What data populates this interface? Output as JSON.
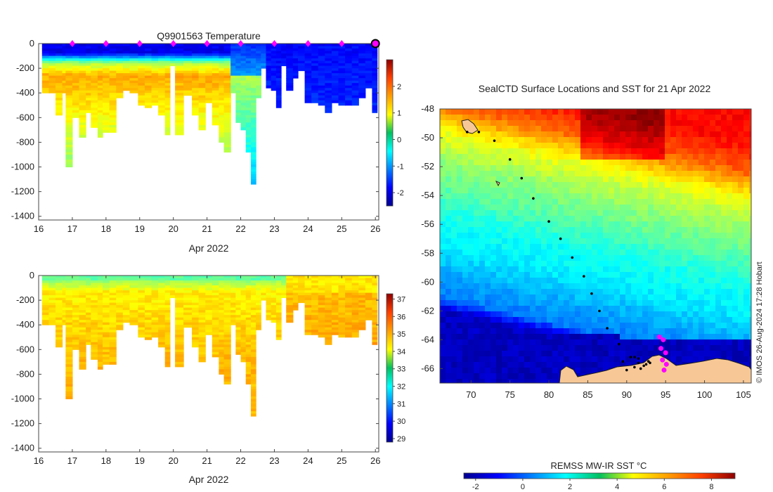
{
  "chart_data": [
    {
      "type": "heatmap",
      "id": "temperature-section",
      "title": "Q9901563  Temperature",
      "xlabel": "Apr 2022",
      "ylabel": "",
      "x_ticks": [
        "16",
        "17",
        "18",
        "19",
        "20",
        "21",
        "22",
        "23",
        "24",
        "25",
        "26"
      ],
      "xlim": [
        16,
        26.1
      ],
      "y_ticks": [
        "0",
        "-200",
        "-400",
        "-600",
        "-800",
        "-1000",
        "-1200",
        "-1400"
      ],
      "ylim": [
        -1430,
        0
      ],
      "colorbar": {
        "min": -2.5,
        "max": 3,
        "ticks": [
          "-2",
          "-1",
          "0",
          "1",
          "2"
        ],
        "colormap": "jet"
      },
      "surface_markers_day": [
        17,
        18,
        19,
        20,
        21,
        22,
        23,
        24,
        25
      ],
      "last_profile_day": 26,
      "profiles": [
        {
          "t": 16.1,
          "d": 400
        },
        {
          "t": 16.3,
          "d": 400
        },
        {
          "t": 16.5,
          "d": 580
        },
        {
          "t": 16.7,
          "d": 400
        },
        {
          "t": 16.8,
          "d": 1000
        },
        {
          "t": 17.0,
          "d": 600
        },
        {
          "t": 17.2,
          "d": 760
        },
        {
          "t": 17.4,
          "d": 550
        },
        {
          "t": 17.55,
          "d": 670
        },
        {
          "t": 17.75,
          "d": 750
        },
        {
          "t": 17.9,
          "d": 720
        },
        {
          "t": 18.1,
          "d": 720
        },
        {
          "t": 18.3,
          "d": 430
        },
        {
          "t": 18.5,
          "d": 380
        },
        {
          "t": 18.7,
          "d": 400
        },
        {
          "t": 18.95,
          "d": 500
        },
        {
          "t": 19.15,
          "d": 520
        },
        {
          "t": 19.35,
          "d": 490
        },
        {
          "t": 19.55,
          "d": 570
        },
        {
          "t": 19.75,
          "d": 740
        },
        {
          "t": 19.9,
          "d": 180
        },
        {
          "t": 20.05,
          "d": 740
        },
        {
          "t": 20.3,
          "d": 420
        },
        {
          "t": 20.55,
          "d": 580
        },
        {
          "t": 20.75,
          "d": 690
        },
        {
          "t": 20.95,
          "d": 480
        },
        {
          "t": 21.15,
          "d": 660
        },
        {
          "t": 21.35,
          "d": 800
        },
        {
          "t": 21.5,
          "d": 870
        },
        {
          "t": 21.7,
          "d": 390
        },
        {
          "t": 21.85,
          "d": 640
        },
        {
          "t": 22.0,
          "d": 700
        },
        {
          "t": 22.15,
          "d": 880
        },
        {
          "t": 22.3,
          "d": 1140
        },
        {
          "t": 22.45,
          "d": 440
        },
        {
          "t": 22.6,
          "d": 200
        },
        {
          "t": 22.75,
          "d": 360
        },
        {
          "t": 22.9,
          "d": 380
        },
        {
          "t": 23.05,
          "d": 510
        },
        {
          "t": 23.2,
          "d": 180
        },
        {
          "t": 23.35,
          "d": 370
        },
        {
          "t": 23.55,
          "d": 280
        },
        {
          "t": 23.7,
          "d": 220
        },
        {
          "t": 23.9,
          "d": 470
        },
        {
          "t": 24.1,
          "d": 470
        },
        {
          "t": 24.3,
          "d": 500
        },
        {
          "t": 24.5,
          "d": 560
        },
        {
          "t": 24.7,
          "d": 480
        },
        {
          "t": 24.9,
          "d": 490
        },
        {
          "t": 25.1,
          "d": 500
        },
        {
          "t": 25.3,
          "d": 500
        },
        {
          "t": 25.5,
          "d": 440
        },
        {
          "t": 25.7,
          "d": 360
        },
        {
          "t": 25.9,
          "d": 550
        }
      ]
    },
    {
      "type": "heatmap",
      "id": "salinity-section",
      "title": "",
      "xlabel": "Apr 2022",
      "ylabel": "",
      "x_ticks": [
        "16",
        "17",
        "18",
        "19",
        "20",
        "21",
        "22",
        "23",
        "24",
        "25",
        "26"
      ],
      "xlim": [
        16,
        26.1
      ],
      "y_ticks": [
        "0",
        "-200",
        "-400",
        "-600",
        "-800",
        "-1000",
        "-1200",
        "-1400"
      ],
      "ylim": [
        -1430,
        0
      ],
      "colorbar": {
        "min": 28.8,
        "max": 37.3,
        "ticks": [
          "29",
          "30",
          "31",
          "32",
          "33",
          "34",
          "35",
          "36",
          "37"
        ],
        "colormap": "jet"
      }
    },
    {
      "type": "heatmap",
      "id": "sst-map",
      "title": "SealCTD Surface Locations and SST for 21 Apr 2022",
      "xlabel": "",
      "ylabel": "",
      "x_ticks": [
        "70",
        "75",
        "80",
        "85",
        "90",
        "95",
        "100",
        "105"
      ],
      "xlim": [
        66,
        106
      ],
      "y_ticks": [
        "-48",
        "-50",
        "-52",
        "-54",
        "-56",
        "-58",
        "-60",
        "-62",
        "-64",
        "-66"
      ],
      "ylim": [
        -67,
        -48
      ],
      "colorbar": {
        "label": "REMSS MW-IR SST °C",
        "min": -2.5,
        "max": 9,
        "ticks": [
          "-2",
          "0",
          "2",
          "4",
          "6",
          "8"
        ],
        "colormap": "jet"
      },
      "track": [
        [
          69.5,
          -49.6
        ],
        [
          71,
          -49.6
        ],
        [
          73,
          -50.2
        ],
        [
          75,
          -51.5
        ],
        [
          76.5,
          -52.8
        ],
        [
          78,
          -54.2
        ],
        [
          80,
          -55.8
        ],
        [
          81.5,
          -57
        ],
        [
          83,
          -58.3
        ],
        [
          84.5,
          -59.6
        ],
        [
          85.5,
          -60.8
        ],
        [
          86.5,
          -62
        ],
        [
          87.5,
          -63.2
        ],
        [
          89,
          -64.3
        ],
        [
          90.5,
          -65.2
        ],
        [
          91.5,
          -65.6
        ],
        [
          92.5,
          -65.7
        ],
        [
          91,
          -65.9
        ],
        [
          89.5,
          -65.5
        ],
        [
          91,
          -65.2
        ],
        [
          92.8,
          -65.5
        ],
        [
          91.8,
          -66
        ],
        [
          90,
          -66.1
        ],
        [
          91.5,
          -65.3
        ],
        [
          93,
          -65.6
        ],
        [
          92.2,
          -65.8
        ]
      ],
      "recent_locations": [
        [
          94.2,
          -63.8
        ],
        [
          94.7,
          -64.0
        ],
        [
          94.4,
          -64.6
        ],
        [
          95.0,
          -64.9
        ],
        [
          94.6,
          -65.4
        ],
        [
          95.1,
          -65.7
        ],
        [
          94.8,
          -66.1
        ]
      ],
      "sst_gradient_lat": [
        {
          "lat": -48,
          "sst": 7.5
        },
        {
          "lat": -50,
          "sst": 6.5
        },
        {
          "lat": -52,
          "sst": 4.5
        },
        {
          "lat": -54,
          "sst": 3.5
        },
        {
          "lat": -56,
          "sst": 2.8
        },
        {
          "lat": -58,
          "sst": 2.0
        },
        {
          "lat": -60,
          "sst": 1.6
        },
        {
          "lat": -62,
          "sst": 0.8
        },
        {
          "lat": -63.5,
          "sst": 0.3
        },
        {
          "lat": -64.3,
          "sst": -1.7
        },
        {
          "lat": -67,
          "sst": -1.8
        }
      ]
    }
  ],
  "watermark": "© IMOS 26-Aug-2024 17:28 Hobart"
}
